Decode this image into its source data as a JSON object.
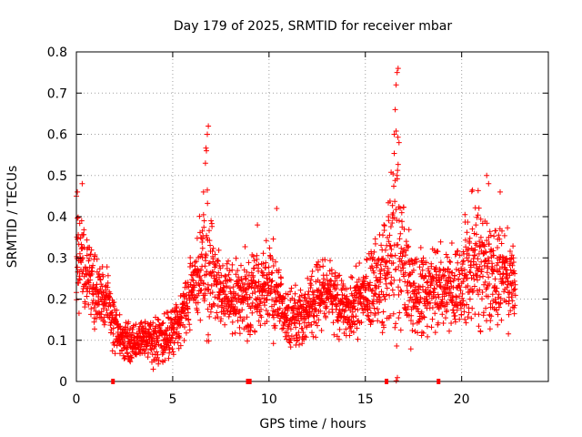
{
  "chart_data": {
    "type": "scatter",
    "title": "Day 179 of 2025, SRMTID for receiver mbar",
    "xlabel": "GPS time / hours",
    "ylabel": "SRMTID / TECUs",
    "xlim": [
      0,
      24.5
    ],
    "ylim": [
      0,
      0.8
    ],
    "x_ticks": [
      0,
      5,
      10,
      15,
      20
    ],
    "x_tick_labels": [
      "0",
      "5",
      "10",
      "15",
      "20"
    ],
    "y_ticks": [
      0,
      0.1,
      0.2,
      0.3,
      0.4,
      0.5,
      0.6,
      0.7,
      0.8
    ],
    "y_tick_labels": [
      "0",
      "0.1",
      "0.2",
      "0.3",
      "0.4",
      "0.5",
      "0.6",
      "0.7",
      "0.8"
    ],
    "grid": true,
    "marker": "+",
    "color": "#ff0000",
    "series": [
      {
        "name": "SRMTID",
        "x": [
          0.0,
          0.2,
          0.4,
          0.6,
          0.8,
          1.0,
          1.2,
          1.4,
          1.6,
          1.8,
          2.0,
          2.2,
          2.4,
          2.6,
          2.8,
          3.0,
          3.2,
          3.4,
          3.6,
          3.8,
          4.0,
          4.2,
          4.4,
          4.6,
          4.8,
          5.0,
          5.2,
          5.4,
          5.6,
          5.8,
          6.0,
          6.2,
          6.4,
          6.6,
          6.8,
          7.0,
          7.2,
          7.4,
          7.6,
          7.8,
          8.0,
          8.2,
          8.4,
          8.6,
          8.8,
          9.0,
          9.2,
          9.4,
          9.6,
          9.8,
          10.0,
          10.2,
          10.4,
          10.6,
          10.8,
          11.0,
          11.2,
          11.4,
          11.6,
          11.8,
          12.0,
          12.2,
          12.4,
          12.6,
          12.8,
          13.0,
          13.2,
          13.4,
          13.6,
          13.8,
          14.0,
          14.2,
          14.4,
          14.6,
          14.8,
          15.0,
          15.2,
          15.4,
          15.6,
          15.8,
          16.0,
          16.2,
          16.4,
          16.6,
          16.8,
          17.0,
          17.2,
          17.4,
          17.6,
          17.8,
          18.0,
          18.2,
          18.4,
          18.6,
          18.8,
          19.0,
          19.2,
          19.4,
          19.6,
          19.8,
          20.0,
          20.2,
          20.4,
          20.6,
          20.8,
          21.0,
          21.2,
          21.4,
          21.6,
          21.8,
          22.0,
          22.2,
          22.4,
          22.6,
          22.8
        ],
        "y": [
          0.3,
          0.29,
          0.28,
          0.26,
          0.24,
          0.22,
          0.21,
          0.2,
          0.2,
          0.16,
          0.13,
          0.11,
          0.1,
          0.1,
          0.09,
          0.09,
          0.1,
          0.11,
          0.11,
          0.11,
          0.1,
          0.1,
          0.1,
          0.1,
          0.11,
          0.12,
          0.13,
          0.14,
          0.17,
          0.2,
          0.23,
          0.24,
          0.26,
          0.28,
          0.3,
          0.27,
          0.24,
          0.23,
          0.22,
          0.21,
          0.2,
          0.19,
          0.19,
          0.2,
          0.2,
          0.21,
          0.21,
          0.21,
          0.22,
          0.23,
          0.23,
          0.22,
          0.2,
          0.19,
          0.17,
          0.16,
          0.15,
          0.15,
          0.15,
          0.16,
          0.18,
          0.19,
          0.2,
          0.21,
          0.22,
          0.22,
          0.21,
          0.2,
          0.19,
          0.18,
          0.17,
          0.17,
          0.18,
          0.19,
          0.2,
          0.21,
          0.22,
          0.23,
          0.24,
          0.26,
          0.28,
          0.3,
          0.34,
          0.38,
          0.34,
          0.28,
          0.24,
          0.22,
          0.21,
          0.21,
          0.21,
          0.21,
          0.22,
          0.23,
          0.23,
          0.23,
          0.22,
          0.22,
          0.22,
          0.23,
          0.24,
          0.26,
          0.28,
          0.3,
          0.29,
          0.28,
          0.27,
          0.27,
          0.27,
          0.27,
          0.26,
          0.26,
          0.25,
          0.25,
          0.25
        ],
        "spread": [
          0.08,
          0.08,
          0.07,
          0.06,
          0.06,
          0.06,
          0.05,
          0.05,
          0.05,
          0.04,
          0.04,
          0.03,
          0.03,
          0.03,
          0.03,
          0.03,
          0.03,
          0.03,
          0.03,
          0.03,
          0.04,
          0.04,
          0.04,
          0.04,
          0.04,
          0.04,
          0.04,
          0.04,
          0.05,
          0.05,
          0.05,
          0.06,
          0.08,
          0.12,
          0.16,
          0.1,
          0.06,
          0.05,
          0.05,
          0.05,
          0.06,
          0.06,
          0.06,
          0.06,
          0.06,
          0.06,
          0.06,
          0.06,
          0.06,
          0.07,
          0.07,
          0.07,
          0.06,
          0.05,
          0.05,
          0.05,
          0.04,
          0.04,
          0.04,
          0.04,
          0.05,
          0.05,
          0.05,
          0.05,
          0.05,
          0.05,
          0.05,
          0.05,
          0.05,
          0.05,
          0.05,
          0.05,
          0.05,
          0.05,
          0.05,
          0.05,
          0.06,
          0.06,
          0.07,
          0.08,
          0.09,
          0.11,
          0.15,
          0.2,
          0.14,
          0.09,
          0.07,
          0.07,
          0.06,
          0.06,
          0.06,
          0.06,
          0.06,
          0.06,
          0.06,
          0.06,
          0.06,
          0.06,
          0.06,
          0.06,
          0.07,
          0.08,
          0.09,
          0.1,
          0.1,
          0.09,
          0.09,
          0.08,
          0.08,
          0.08,
          0.08,
          0.08,
          0.07,
          0.07,
          0.07
        ]
      }
    ],
    "peaks": {
      "x": [
        0.0,
        0.05,
        0.3,
        6.6,
        6.7,
        6.75,
        6.8,
        6.85,
        9.4,
        10.4,
        16.5,
        16.55,
        16.6,
        16.65,
        16.7,
        16.75,
        21.3,
        21.4,
        22.0
      ],
      "y": [
        0.45,
        0.46,
        0.48,
        0.46,
        0.53,
        0.56,
        0.6,
        0.62,
        0.38,
        0.42,
        0.6,
        0.66,
        0.72,
        0.75,
        0.76,
        0.58,
        0.5,
        0.48,
        0.46
      ]
    },
    "axis_marks_x": [
      1.9,
      8.9,
      9.0,
      16.1,
      18.8
    ]
  }
}
